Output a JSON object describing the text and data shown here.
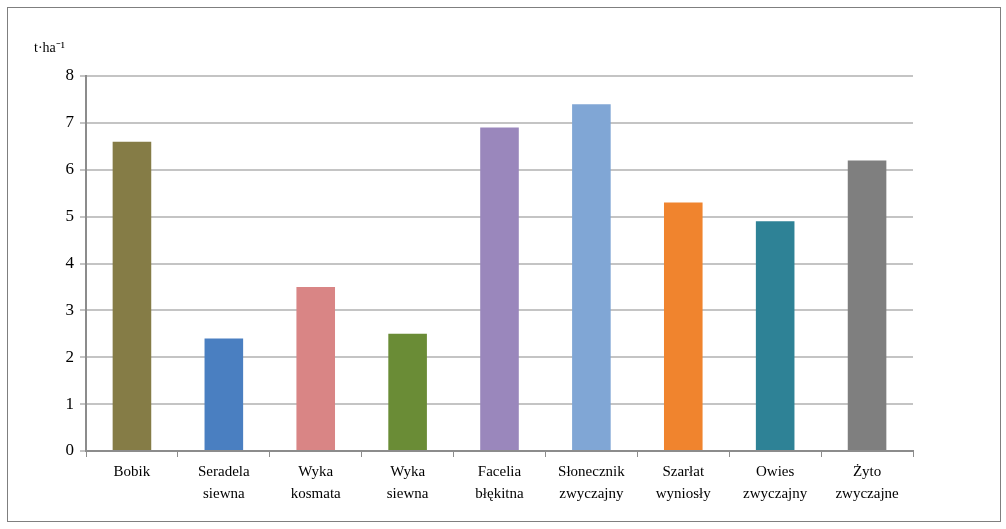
{
  "chart_data": {
    "type": "bar",
    "ylabel": "t·ha⁻¹",
    "categories": [
      "Bobik",
      "Seradela siewna",
      "Wyka kosmata",
      "Wyka siewna",
      "Facelia błękitna",
      "Słonecznik zwyczajny",
      "Szarłat wyniosły",
      "Owies zwyczajny",
      "Żyto zwyczajne"
    ],
    "values": [
      6.6,
      2.4,
      3.5,
      2.5,
      6.9,
      7.4,
      5.3,
      4.9,
      6.2
    ],
    "colors": [
      "#857c46",
      "#4a7fc1",
      "#d98585",
      "#6a8c36",
      "#9a87bc",
      "#80a6d5",
      "#f0842e",
      "#2e8296",
      "#7f7f7f"
    ],
    "ylim": [
      0,
      8
    ],
    "yticks": [
      0,
      1,
      2,
      3,
      4,
      5,
      6,
      7,
      8
    ],
    "grid": "y"
  }
}
